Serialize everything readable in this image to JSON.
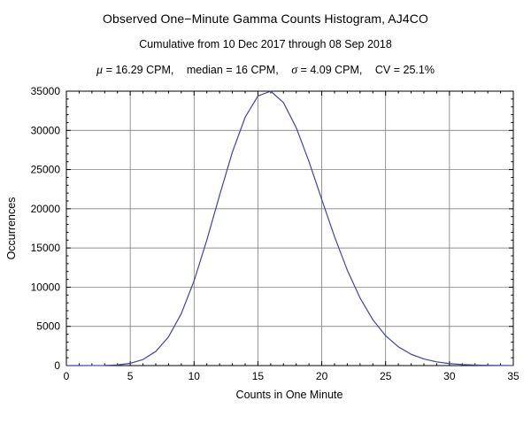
{
  "chart_data": {
    "type": "line",
    "title": "Observed One−Minute Gamma Counts Histogram, AJ4CO",
    "subtitle": "Cumulative from 10 Dec 2017 through 08 Sep 2018",
    "stats": {
      "mu_symbol": "μ",
      "mu_text": "= 16.29 CPM,",
      "median_text": "median = 16 CPM,",
      "sigma_symbol": "σ",
      "sigma_text": "= 4.09 CPM,",
      "cv_text": "CV = 25.1%",
      "mean_cpm": 16.29,
      "median_cpm": 16,
      "sigma_cpm": 4.09,
      "cv_percent": 25.1
    },
    "xlabel": "Counts in One Minute",
    "ylabel": "Occurrences",
    "xlim": [
      0,
      35
    ],
    "ylim": [
      0,
      35000
    ],
    "xticks": [
      0,
      5,
      10,
      15,
      20,
      25,
      30,
      35
    ],
    "yticks": [
      0,
      5000,
      10000,
      15000,
      20000,
      25000,
      30000,
      35000
    ],
    "xgrid": [
      5,
      10,
      15,
      20,
      25,
      30
    ],
    "ygrid": [
      5000,
      10000,
      15000,
      20000,
      25000,
      30000
    ],
    "x_minor_step": 1,
    "y_minor_step": 1000,
    "grid": true,
    "x": [
      0,
      1,
      2,
      3,
      4,
      5,
      6,
      7,
      8,
      9,
      10,
      11,
      12,
      13,
      14,
      15,
      16,
      17,
      18,
      19,
      20,
      21,
      22,
      23,
      24,
      25,
      26,
      27,
      28,
      29,
      30,
      31,
      32,
      33,
      34,
      35
    ],
    "values": [
      0,
      1,
      4,
      21,
      87,
      285,
      775,
      1800,
      3660,
      6630,
      10810,
      16010,
      21730,
      27220,
      31670,
      34390,
      35000,
      33540,
      30350,
      26020,
      21190,
      16440,
      12170,
      8620,
      5850,
      3810,
      2390,
      1440,
      835,
      470,
      255,
      134,
      68,
      34,
      16,
      8
    ],
    "curve_color": "#4343a4",
    "grid_color": "#6b6b6b",
    "frame_color": "#000000",
    "background_color": "#ffffff"
  }
}
